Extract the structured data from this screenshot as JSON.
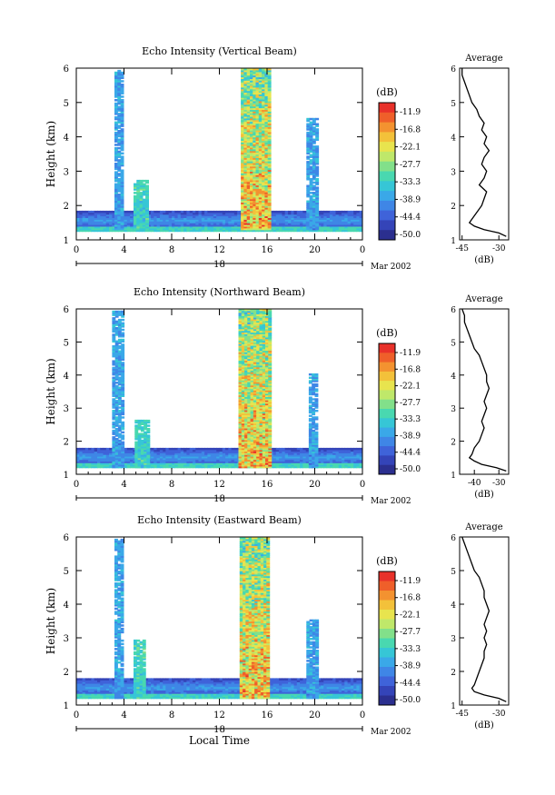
{
  "figure": {
    "x_axis_label": "Local Time",
    "date_label": "18",
    "month_label": "Mar 2002"
  },
  "chart_data": [
    {
      "type": "heatmap",
      "title": "Echo Intensity (Vertical Beam)",
      "ylabel": "Height (km)",
      "xlabel": "",
      "x_ticks": [
        "0",
        "4",
        "8",
        "12",
        "16",
        "20",
        "0"
      ],
      "y_ticks": [
        "1",
        "2",
        "3",
        "4",
        "5",
        "6"
      ],
      "xlim": [
        0,
        24
      ],
      "ylim": [
        1,
        6
      ],
      "colorbar": {
        "unit": "(dB)",
        "labels": [
          "-11.9",
          "-16.8",
          "-22.1",
          "-27.7",
          "-33.3",
          "-38.9",
          "-44.4",
          "-50.0"
        ]
      },
      "features": [
        {
          "t0": 0,
          "t1": 24,
          "h0": 1.25,
          "h1": 1.85,
          "level": "low"
        },
        {
          "t0": 3.2,
          "t1": 3.9,
          "h0": 1.3,
          "h1": 5.9,
          "level": "mid-low"
        },
        {
          "t0": 4.8,
          "t1": 6.0,
          "h0": 1.3,
          "h1": 2.7,
          "level": "mid"
        },
        {
          "t0": 13.8,
          "t1": 16.2,
          "h0": 1.3,
          "h1": 6.0,
          "level": "high"
        },
        {
          "t0": 19.3,
          "t1": 20.1,
          "h0": 1.3,
          "h1": 4.5,
          "level": "mid-low"
        }
      ],
      "average_profile": {
        "title": "Average",
        "xlabel": "(dB)",
        "x_ticks": [
          "-45",
          "-30"
        ],
        "xlim": [
          -46,
          -26
        ],
        "heights": [
          1.1,
          1.2,
          1.3,
          1.4,
          1.5,
          1.6,
          1.8,
          2.0,
          2.2,
          2.4,
          2.6,
          2.8,
          3.0,
          3.2,
          3.4,
          3.6,
          3.8,
          4.0,
          4.2,
          4.4,
          4.6,
          4.8,
          5.0,
          5.2,
          5.4,
          5.6,
          5.8,
          6.0
        ],
        "values": [
          -27,
          -30,
          -36,
          -40,
          -42,
          -41,
          -39,
          -37,
          -36,
          -35,
          -38,
          -36,
          -35,
          -37,
          -36,
          -34,
          -36,
          -35,
          -37,
          -36,
          -38,
          -39,
          -41,
          -42,
          -43,
          -44,
          -45,
          -45
        ]
      }
    },
    {
      "type": "heatmap",
      "title": "Echo Intensity (Northward Beam)",
      "ylabel": "Height (km)",
      "xlabel": "",
      "x_ticks": [
        "0",
        "4",
        "8",
        "12",
        "16",
        "20",
        "0"
      ],
      "y_ticks": [
        "1",
        "2",
        "3",
        "4",
        "5",
        "6"
      ],
      "xlim": [
        0,
        24
      ],
      "ylim": [
        1,
        6
      ],
      "colorbar": {
        "unit": "(dB)",
        "labels": [
          "-11.9",
          "-16.8",
          "-22.1",
          "-27.7",
          "-33.3",
          "-38.9",
          "-44.4",
          "-50.0"
        ]
      },
      "features": [
        {
          "t0": 0,
          "t1": 24,
          "h0": 1.2,
          "h1": 1.8,
          "level": "low"
        },
        {
          "t0": 3.0,
          "t1": 3.9,
          "h0": 1.2,
          "h1": 5.9,
          "level": "mid-low"
        },
        {
          "t0": 4.9,
          "t1": 6.0,
          "h0": 1.2,
          "h1": 2.6,
          "level": "mid"
        },
        {
          "t0": 13.6,
          "t1": 16.2,
          "h0": 1.2,
          "h1": 6.0,
          "level": "high"
        },
        {
          "t0": 19.5,
          "t1": 20.2,
          "h0": 1.2,
          "h1": 4.0,
          "level": "mid-low"
        }
      ],
      "average_profile": {
        "title": "Average",
        "xlabel": "(dB)",
        "x_ticks": [
          "-40",
          "-30"
        ],
        "xlim": [
          -46,
          -26
        ],
        "heights": [
          1.1,
          1.2,
          1.3,
          1.4,
          1.5,
          1.6,
          1.8,
          2.0,
          2.2,
          2.4,
          2.6,
          2.8,
          3.0,
          3.2,
          3.4,
          3.6,
          3.8,
          4.0,
          4.2,
          4.4,
          4.6,
          4.8,
          5.0,
          5.2,
          5.4,
          5.6,
          5.8,
          6.0
        ],
        "values": [
          -27,
          -31,
          -37,
          -40,
          -42,
          -41,
          -40,
          -38,
          -37,
          -36,
          -37,
          -36,
          -35,
          -36,
          -35,
          -34,
          -35,
          -35,
          -36,
          -37,
          -38,
          -40,
          -41,
          -42,
          -43,
          -44,
          -44,
          -45
        ]
      }
    },
    {
      "type": "heatmap",
      "title": "Echo Intensity (Eastward Beam)",
      "ylabel": "Height (km)",
      "xlabel": "Local Time",
      "x_ticks": [
        "0",
        "4",
        "8",
        "12",
        "16",
        "20",
        "0"
      ],
      "y_ticks": [
        "1",
        "2",
        "3",
        "4",
        "5",
        "6"
      ],
      "xlim": [
        0,
        24
      ],
      "ylim": [
        1,
        6
      ],
      "colorbar": {
        "unit": "(dB)",
        "labels": [
          "-11.9",
          "-16.8",
          "-22.1",
          "-27.7",
          "-33.3",
          "-38.9",
          "-44.4",
          "-50.0"
        ]
      },
      "features": [
        {
          "t0": 0,
          "t1": 24,
          "h0": 1.2,
          "h1": 1.8,
          "level": "low"
        },
        {
          "t0": 3.2,
          "t1": 3.9,
          "h0": 1.2,
          "h1": 5.9,
          "level": "mid-low"
        },
        {
          "t0": 4.8,
          "t1": 5.8,
          "h0": 1.2,
          "h1": 2.9,
          "level": "mid"
        },
        {
          "t0": 13.7,
          "t1": 16.2,
          "h0": 1.2,
          "h1": 6.0,
          "level": "high"
        },
        {
          "t0": 19.3,
          "t1": 20.3,
          "h0": 1.2,
          "h1": 3.5,
          "level": "mid-low"
        }
      ],
      "average_profile": {
        "title": "Average",
        "xlabel": "(dB)",
        "x_ticks": [
          "-45",
          "-30"
        ],
        "xlim": [
          -46,
          -26
        ],
        "heights": [
          1.1,
          1.2,
          1.3,
          1.4,
          1.5,
          1.6,
          1.8,
          2.0,
          2.2,
          2.4,
          2.6,
          2.8,
          3.0,
          3.2,
          3.4,
          3.6,
          3.8,
          4.0,
          4.2,
          4.4,
          4.6,
          4.8,
          5.0,
          5.2,
          5.4,
          5.6,
          5.8,
          6.0
        ],
        "values": [
          -27,
          -30,
          -36,
          -40,
          -41,
          -40,
          -39,
          -38,
          -37,
          -36,
          -36,
          -35,
          -36,
          -35,
          -36,
          -35,
          -34,
          -35,
          -36,
          -36,
          -37,
          -38,
          -40,
          -41,
          -42,
          -43,
          -44,
          -45
        ]
      }
    }
  ]
}
